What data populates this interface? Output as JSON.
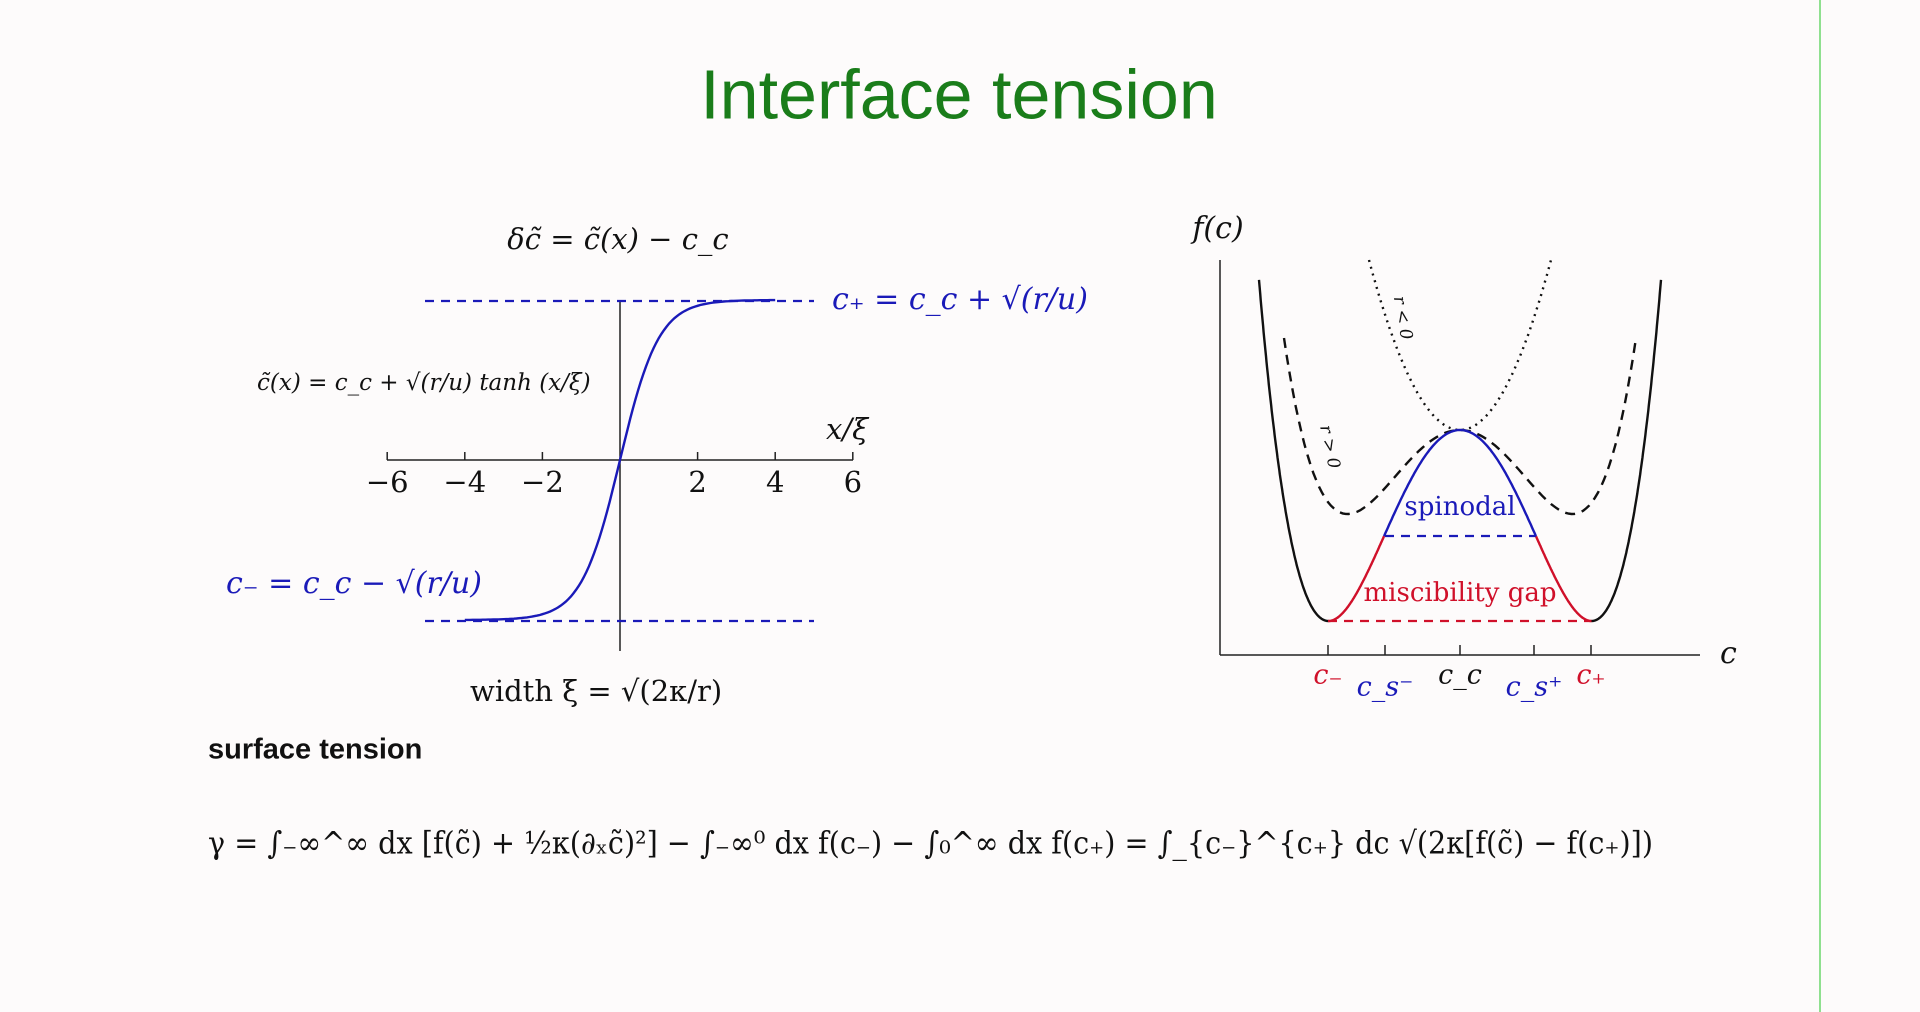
{
  "title": "Interface tension",
  "left_plot": {
    "y_label": "δc̃ = c̃(x) − c_c",
    "upper_label": "c₊ = c_c + √(r/u)",
    "profile": "c̃(x) = c_c + √(r/u) tanh (x/ξ)",
    "x_label": "x/ξ",
    "x_ticks": [
      "−6",
      "−4",
      "−2",
      "2",
      "4",
      "6"
    ],
    "lower_label": "c₋ = c_c − √(r/u)",
    "width": "width  ξ = √(2κ/r)"
  },
  "right_plot": {
    "y_label": "f(c)",
    "x_label": "c",
    "curve_labels": [
      "r < 0",
      "r > 0"
    ],
    "region_labels": [
      "spinodal",
      "miscibility gap"
    ],
    "x_ticks": [
      "c₋",
      "c_s⁻",
      "c_c",
      "c_s⁺",
      "c₊"
    ]
  },
  "surface_tension": {
    "heading": "surface tension",
    "equation": "γ = ∫₋∞^∞ dx [f(c̃) + ½κ(∂ₓc̃)²] − ∫₋∞⁰ dx f(c₋) − ∫₀^∞ dx f(c₊)  =  ∫_{c₋}^{c₊} dc √(2κ[f(c̃) − f(c₊)])"
  }
}
